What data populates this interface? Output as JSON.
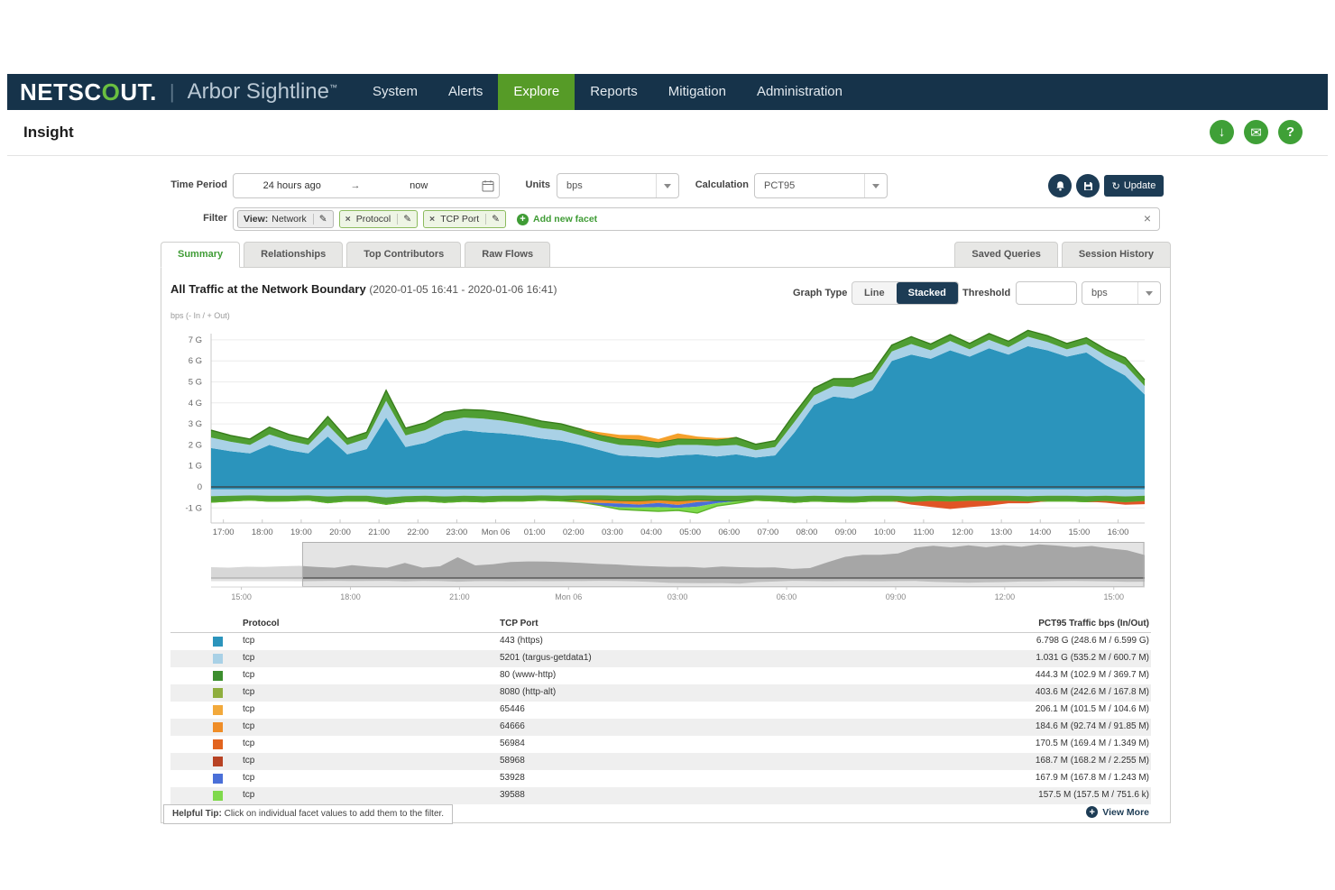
{
  "navbar": {
    "brand_pre": "NETSC",
    "brand_o": "O",
    "brand_post": "UT.",
    "separator": "|",
    "product": "Arbor Sightline",
    "trademark": "™",
    "items": [
      "System",
      "Alerts",
      "Explore",
      "Reports",
      "Mitigation",
      "Administration"
    ],
    "active": "Explore"
  },
  "page": {
    "title": "Insight"
  },
  "icons": {
    "download": "↓",
    "mail": "✉",
    "help": "?",
    "refresh": "↻",
    "pencil": "✎",
    "close": "×",
    "remove": "×",
    "add": "+",
    "arrow_right": "→",
    "view_more_plus": "+"
  },
  "controls": {
    "time_period_label": "Time Period",
    "time_from": "24 hours ago",
    "time_to": "now",
    "units_label": "Units",
    "units_value": "bps",
    "calculation_label": "Calculation",
    "calculation_value": "PCT95",
    "update_label": "Update"
  },
  "filter": {
    "label": "Filter",
    "chips": [
      {
        "type": "view",
        "prefix": "View:",
        "label": "Network"
      },
      {
        "type": "removable",
        "label": "Protocol"
      },
      {
        "type": "removable",
        "label": "TCP Port"
      }
    ],
    "add_label": "Add new facet"
  },
  "tabs": {
    "left": [
      "Summary",
      "Relationships",
      "Top Contributors",
      "Raw Flows"
    ],
    "right": [
      "Saved Queries",
      "Session History"
    ],
    "active": "Summary"
  },
  "chart_header": {
    "title": "All Traffic at the Network Boundary",
    "range": "(2020-01-05 16:41 - 2020-01-06 16:41)",
    "graph_type_label": "Graph Type",
    "graph_type_options": [
      "Line",
      "Stacked"
    ],
    "graph_type_active": "Stacked",
    "threshold_label": "Threshold",
    "threshold_value": "",
    "threshold_units": "bps"
  },
  "chart_data": {
    "type": "area",
    "stacked": true,
    "title": "All Traffic at the Network Boundary",
    "ylabel": "bps (- In / + Out)",
    "units": "Gbps",
    "ylim": [
      -1.6,
      7.8
    ],
    "window_min": 1440,
    "first_tick_offset_min": 19,
    "sample_interval_min": 30,
    "x_ticks": [
      "17:00",
      "18:00",
      "19:00",
      "20:00",
      "21:00",
      "22:00",
      "23:00",
      "Mon 06",
      "01:00",
      "02:00",
      "03:00",
      "04:00",
      "05:00",
      "06:00",
      "07:00",
      "08:00",
      "09:00",
      "10:00",
      "11:00",
      "12:00",
      "13:00",
      "14:00",
      "15:00",
      "16:00"
    ],
    "y_ticks": [
      {
        "v": 7,
        "label": "7 G"
      },
      {
        "v": 6,
        "label": "6 G"
      },
      {
        "v": 5,
        "label": "5 G"
      },
      {
        "v": 4,
        "label": "4 G"
      },
      {
        "v": 3,
        "label": "3 G"
      },
      {
        "v": 2,
        "label": "2 G"
      },
      {
        "v": 1,
        "label": "1 G"
      },
      {
        "v": 0,
        "label": "0"
      },
      {
        "v": -1,
        "label": "-1 G"
      }
    ],
    "series_above": [
      {
        "name": "tcp/443 (https) Out",
        "color": "#2b94bc",
        "values": [
          1.85,
          1.7,
          1.6,
          2.0,
          1.75,
          1.6,
          2.4,
          1.55,
          1.8,
          3.3,
          1.9,
          2.1,
          2.5,
          2.7,
          2.6,
          2.55,
          2.45,
          2.3,
          2.2,
          2.0,
          1.75,
          1.5,
          1.45,
          1.4,
          1.5,
          1.55,
          1.45,
          1.55,
          1.4,
          1.5,
          2.6,
          3.9,
          4.3,
          4.2,
          4.6,
          6.0,
          6.3,
          6.1,
          6.5,
          6.2,
          6.6,
          6.3,
          6.7,
          6.5,
          6.2,
          6.4,
          5.8,
          5.3,
          4.4
        ]
      },
      {
        "name": "tcp/5201 (targus-getdata1) Out",
        "color": "#a9d1e6",
        "values": [
          0.5,
          0.45,
          0.4,
          0.5,
          0.45,
          0.4,
          0.55,
          0.45,
          0.5,
          0.8,
          0.55,
          0.6,
          0.65,
          0.6,
          0.65,
          0.6,
          0.55,
          0.5,
          0.5,
          0.45,
          0.45,
          0.5,
          0.5,
          0.45,
          0.5,
          0.45,
          0.5,
          0.45,
          0.35,
          0.4,
          0.5,
          0.45,
          0.5,
          0.55,
          0.5,
          0.45,
          0.5,
          0.4,
          0.45,
          0.35,
          0.4,
          0.35,
          0.45,
          0.4,
          0.35,
          0.4,
          0.45,
          0.5,
          0.4
        ]
      },
      {
        "name": "tcp/80 (www-http) Out",
        "color": "#4f9e33",
        "edge": "#377c1b",
        "values": [
          0.35,
          0.3,
          0.28,
          0.35,
          0.3,
          0.28,
          0.4,
          0.3,
          0.3,
          0.5,
          0.35,
          0.35,
          0.4,
          0.38,
          0.4,
          0.38,
          0.35,
          0.33,
          0.3,
          0.3,
          0.28,
          0.3,
          0.3,
          0.28,
          0.3,
          0.28,
          0.3,
          0.35,
          0.28,
          0.3,
          0.4,
          0.35,
          0.35,
          0.4,
          0.35,
          0.3,
          0.35,
          0.3,
          0.3,
          0.28,
          0.3,
          0.28,
          0.3,
          0.3,
          0.28,
          0.3,
          0.3,
          0.35,
          0.3
        ]
      },
      {
        "name": "tcp/65446 Out",
        "color": "#f5a12c",
        "values": [
          0,
          0,
          0,
          0,
          0,
          0,
          0,
          0,
          0,
          0,
          0,
          0,
          0,
          0,
          0,
          0,
          0,
          0,
          0,
          0,
          0.12,
          0.18,
          0.22,
          0.15,
          0.25,
          0.12,
          0.08,
          0,
          0,
          0,
          0,
          0,
          0,
          0,
          0,
          0,
          0,
          0,
          0,
          0,
          0,
          0,
          0,
          0,
          0,
          0,
          0,
          0,
          0
        ]
      }
    ],
    "series_below": [
      {
        "name": "tcp/443 In",
        "color": "#2b94bc",
        "const": 0.12
      },
      {
        "name": "tcp/5201 In",
        "color": "#a9d1e6",
        "values": [
          0.32,
          0.3,
          0.28,
          0.3,
          0.3,
          0.28,
          0.33,
          0.3,
          0.3,
          0.38,
          0.32,
          0.3,
          0.33,
          0.3,
          0.32,
          0.3,
          0.3,
          0.28,
          0.3,
          0.28,
          0.28,
          0.3,
          0.3,
          0.28,
          0.3,
          0.28,
          0.3,
          0.3,
          0.28,
          0.3,
          0.33,
          0.3,
          0.32,
          0.33,
          0.3,
          0.3,
          0.33,
          0.3,
          0.32,
          0.3,
          0.3,
          0.3,
          0.32,
          0.3,
          0.3,
          0.32,
          0.3,
          0.33,
          0.3
        ]
      },
      {
        "name": "tcp/80 In",
        "color": "#4f9e33",
        "edge": "#377c1b",
        "values": [
          0.28,
          0.25,
          0.22,
          0.26,
          0.24,
          0.22,
          0.3,
          0.24,
          0.25,
          0.32,
          0.26,
          0.25,
          0.28,
          0.26,
          0.27,
          0.25,
          0.25,
          0.23,
          0.24,
          0.23,
          0.22,
          0.25,
          0.26,
          0.24,
          0.26,
          0.24,
          0.25,
          0.26,
          0.23,
          0.25,
          0.28,
          0.25,
          0.26,
          0.27,
          0.25,
          0.24,
          0.27,
          0.25,
          0.26,
          0.24,
          0.25,
          0.24,
          0.26,
          0.25,
          0.24,
          0.26,
          0.25,
          0.28,
          0.25
        ]
      },
      {
        "name": "tcp/64666 In",
        "color": "#ef8d27",
        "values": [
          0,
          0,
          0,
          0,
          0,
          0,
          0,
          0,
          0,
          0,
          0,
          0,
          0,
          0,
          0,
          0,
          0,
          0,
          0,
          0.1,
          0.14,
          0.12,
          0.16,
          0.12,
          0.18,
          0.08,
          0,
          0,
          0,
          0,
          0,
          0,
          0,
          0,
          0,
          0,
          0,
          0,
          0,
          0,
          0,
          0,
          0,
          0,
          0,
          0,
          0,
          0,
          0
        ]
      },
      {
        "name": "tcp/53928 In",
        "color": "#4a6fd8",
        "values": [
          0,
          0,
          0,
          0,
          0,
          0,
          0,
          0,
          0,
          0,
          0,
          0,
          0,
          0,
          0,
          0,
          0,
          0,
          0,
          0,
          0.12,
          0.18,
          0.14,
          0.2,
          0.14,
          0.22,
          0.1,
          0,
          0,
          0,
          0,
          0,
          0,
          0,
          0,
          0,
          0,
          0,
          0,
          0,
          0,
          0,
          0,
          0,
          0,
          0,
          0,
          0,
          0
        ]
      },
      {
        "name": "tcp/39588 In",
        "color": "#7fd94c",
        "edge": "#5cb32c",
        "values": [
          0,
          0,
          0,
          0,
          0,
          0,
          0,
          0,
          0,
          0,
          0,
          0,
          0,
          0,
          0,
          0,
          0,
          0,
          0,
          0,
          0,
          0.1,
          0.14,
          0.2,
          0.12,
          0.3,
          0.14,
          0.1,
          0,
          0,
          0,
          0,
          0,
          0,
          0,
          0,
          0,
          0,
          0,
          0,
          0,
          0,
          0,
          0,
          0,
          0,
          0,
          0,
          0
        ]
      },
      {
        "name": "tcp/56984 In",
        "color": "#e05426",
        "values": [
          0,
          0,
          0,
          0,
          0,
          0,
          0,
          0,
          0,
          0,
          0,
          0,
          0,
          0,
          0,
          0,
          0,
          0,
          0,
          0,
          0,
          0,
          0,
          0,
          0,
          0,
          0,
          0,
          0,
          0,
          0,
          0,
          0,
          0,
          0,
          0,
          0.12,
          0.28,
          0.35,
          0.3,
          0.22,
          0.12,
          0.08,
          0,
          0,
          0,
          0.08,
          0.12,
          0.15
        ]
      }
    ],
    "minimap": {
      "pre_values": [
        2.4,
        2.3,
        2.5,
        2.45,
        2.6
      ],
      "pre_below": [
        0.7,
        0.7,
        0.7,
        0.7,
        0.7
      ],
      "span_min": 1541,
      "brush_start_frac": 0.098,
      "ticks": [
        {
          "label": "15:00",
          "min": 50
        },
        {
          "label": "18:00",
          "min": 230
        },
        {
          "label": "21:00",
          "min": 410
        },
        {
          "label": "Mon 06",
          "min": 590
        },
        {
          "label": "03:00",
          "min": 770
        },
        {
          "label": "06:00",
          "min": 950
        },
        {
          "label": "09:00",
          "min": 1130
        },
        {
          "label": "12:00",
          "min": 1310
        },
        {
          "label": "15:00",
          "min": 1490
        }
      ]
    }
  },
  "table": {
    "columns": [
      "Protocol",
      "TCP Port",
      "PCT95 Traffic bps (In/Out)"
    ],
    "rows": [
      {
        "color": "#2b94bc",
        "protocol": "tcp",
        "port": "443 (https)",
        "traffic": "6.798 G (248.6 M / 6.599 G)"
      },
      {
        "color": "#a9d1e6",
        "protocol": "tcp",
        "port": "5201 (targus-getdata1)",
        "traffic": "1.031 G (535.2 M / 600.7 M)"
      },
      {
        "color": "#3c8e2e",
        "protocol": "tcp",
        "port": "80 (www-http)",
        "traffic": "444.3 M (102.9 M / 369.7 M)"
      },
      {
        "color": "#8fae3e",
        "protocol": "tcp",
        "port": "8080 (http-alt)",
        "traffic": "403.6 M (242.6 M / 167.8 M)"
      },
      {
        "color": "#f2a93b",
        "protocol": "tcp",
        "port": "65446",
        "traffic": "206.1 M (101.5 M / 104.6 M)"
      },
      {
        "color": "#ef8d27",
        "protocol": "tcp",
        "port": "64666",
        "traffic": "184.6 M (92.74 M / 91.85 M)"
      },
      {
        "color": "#e2641f",
        "protocol": "tcp",
        "port": "56984",
        "traffic": "170.5 M (169.4 M / 1.349 M)"
      },
      {
        "color": "#b84324",
        "protocol": "tcp",
        "port": "58968",
        "traffic": "168.7 M (168.2 M / 2.255 M)"
      },
      {
        "color": "#4a6fd8",
        "protocol": "tcp",
        "port": "53928",
        "traffic": "167.9 M (167.8 M / 1.243 M)"
      },
      {
        "color": "#7fd94c",
        "protocol": "tcp",
        "port": "39588",
        "traffic": "157.5 M (157.5 M / 751.6 k)"
      }
    ]
  },
  "footer": {
    "tip_bold": "Helpful Tip:",
    "tip_text": " Click on individual facet values to add them to the filter.",
    "view_more": "View More"
  }
}
